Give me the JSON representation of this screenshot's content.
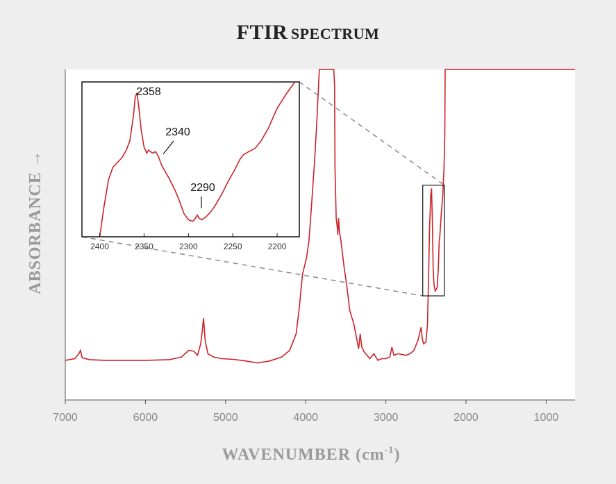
{
  "title": {
    "first": "FTIR",
    "second": "Spectrum"
  },
  "colors": {
    "spectrum": "#cc2229",
    "background": "#eeeeee",
    "plot": "#ffffff",
    "axis": "#555555",
    "connector": "#8a8a8a"
  },
  "chart_data": [
    {
      "type": "line",
      "title": "FTIR Spectrum",
      "xlabel": "WAVENUMBER (cm-1)",
      "xlabel_main": "WAVENUMBER (cm",
      "xlabel_sup": "-1",
      "xlabel_close": ")",
      "ylabel": "ABSORBANCE",
      "ylabel_arrow": "→",
      "xlim": [
        7000,
        640
      ],
      "ylim": [
        0,
        100
      ],
      "xticks": [
        7000,
        6000,
        5000,
        4000,
        3000,
        2000,
        1000
      ],
      "yticks": [],
      "grid": false,
      "series": [
        {
          "name": "",
          "x": [
            7000,
            6880,
            6830,
            6810,
            6790,
            6700,
            6500,
            6000,
            5700,
            5550,
            5460,
            5400,
            5350,
            5310,
            5290,
            5275,
            5255,
            5220,
            5150,
            5050,
            4900,
            4750,
            4600,
            4450,
            4300,
            4200,
            4120,
            4080,
            4040,
            3990,
            3960,
            3930,
            3890,
            3860,
            3830,
            3810,
            3800,
            3780,
            3760,
            3650,
            3640,
            3635,
            3620,
            3605,
            3600,
            3590,
            3580,
            3560,
            3540,
            3520,
            3490,
            3450,
            3400,
            3360,
            3340,
            3320,
            3300,
            3270,
            3200,
            3150,
            3100,
            3050,
            3000,
            2950,
            2925,
            2900,
            2850,
            2750,
            2700,
            2650,
            2600,
            2560,
            2545,
            2530,
            2500,
            2480,
            2465,
            2455,
            2440,
            2430,
            2420,
            2410,
            2400,
            2385,
            2360,
            2345,
            2335,
            2325,
            2310,
            2290,
            2275,
            2265,
            2260,
            2255,
            2250,
            1500,
            1000,
            640
          ],
          "y": [
            12,
            12.5,
            14,
            15,
            12.8,
            12.2,
            12,
            12,
            12.2,
            13,
            15,
            14.8,
            13.5,
            17,
            21,
            24.8,
            18,
            14,
            13,
            12.5,
            12.3,
            11.8,
            11.2,
            11.8,
            13,
            15,
            20,
            28,
            38,
            43,
            48,
            58,
            72,
            85,
            100,
            100,
            100,
            100,
            100,
            100,
            95,
            70,
            55,
            52,
            50,
            55,
            51,
            48,
            44,
            40,
            35,
            27,
            23,
            18,
            15.5,
            20,
            16,
            14.5,
            12.5,
            14,
            12,
            12.5,
            12.5,
            13,
            16,
            13.5,
            14,
            13.5,
            14,
            15,
            18,
            22,
            18.5,
            17,
            17.5,
            23,
            40,
            52,
            62,
            64,
            54,
            40,
            35,
            33,
            34,
            40,
            48,
            50,
            56,
            62,
            70,
            80,
            100,
            100,
            100,
            100,
            100,
            100
          ]
        }
      ],
      "zoom_box": {
        "x": [
          2540,
          2270
        ],
        "y": [
          31.5,
          65
        ]
      }
    },
    {
      "type": "line",
      "xlim": [
        2420,
        2175
      ],
      "ylim": [
        0,
        100
      ],
      "xticks": [
        2400,
        2350,
        2300,
        2250,
        2200
      ],
      "grid": false,
      "annotations": [
        {
          "label": "2358",
          "x": 2358
        },
        {
          "label": "2340",
          "x": 2340
        },
        {
          "label": "2290",
          "x": 2290
        }
      ],
      "series": [
        {
          "name": "",
          "x": [
            2400,
            2395,
            2390,
            2385,
            2380,
            2375,
            2370,
            2366,
            2362,
            2360,
            2358,
            2356,
            2353,
            2350,
            2347,
            2345,
            2343,
            2340,
            2337,
            2334,
            2330,
            2322,
            2315,
            2310,
            2305,
            2300,
            2295,
            2292,
            2290,
            2288,
            2285,
            2280,
            2275,
            2270,
            2262,
            2255,
            2248,
            2242,
            2238,
            2232,
            2225,
            2218,
            2210,
            2200,
            2190,
            2185,
            2180
          ],
          "y": [
            0,
            20,
            37,
            45,
            48,
            51,
            56,
            62,
            78,
            90,
            93,
            84,
            68,
            58,
            54,
            56,
            55,
            54,
            55,
            52,
            46,
            38,
            30,
            23,
            15,
            11,
            10,
            12,
            14,
            12,
            11,
            13,
            16,
            20,
            28,
            36,
            43,
            50,
            53,
            55,
            57,
            62,
            70,
            83,
            92,
            96,
            100
          ]
        }
      ]
    }
  ]
}
